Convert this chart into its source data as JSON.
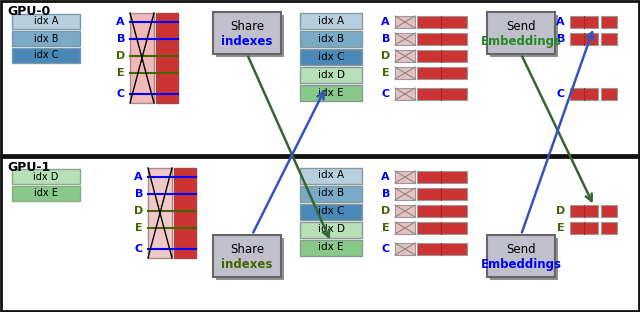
{
  "gpu0_label": "GPU-0",
  "gpu1_label": "GPU-1",
  "indexes_word": "indexes",
  "embeddings_word": "Embeddings",
  "gpu0_idx_labels": [
    "idx A",
    "idx B",
    "idx C"
  ],
  "gpu1_idx_labels": [
    "idx D",
    "idx E"
  ],
  "all_idx_labels": [
    "idx A",
    "idx B",
    "idx C",
    "idx D",
    "idx E"
  ],
  "row_labels": [
    "A",
    "B",
    "D",
    "E",
    "C"
  ],
  "bg_color": "#ffffff",
  "gpu_frame_color": "#111111",
  "idx_box_colors_gpu0": [
    "#b8cfe0",
    "#7aaac8",
    "#4a88b8"
  ],
  "idx_box_colors_all": [
    "#b8cfe0",
    "#7aaac8",
    "#4a88b8",
    "#b8e0b8",
    "#88c888"
  ],
  "gpu1_idx_box_colors": [
    "#b8e0b8",
    "#88c888"
  ],
  "share_box_color": "#c0c0cc",
  "send_box_color": "#c0c0cc",
  "shadow_color": "#909090",
  "arrow_blue": "#3355bb",
  "arrow_green": "#336633",
  "memory_left_color_gpu0": "#f0b8b8",
  "memory_right_color": "#cc3333",
  "memory_left_color_gpu1": "#f0c8c8",
  "embed_bar_color": "#cc3333",
  "embed_cross_bg": "#e8c0c0",
  "cross_line_color": "#888888",
  "bar_divider_color": "#888888"
}
